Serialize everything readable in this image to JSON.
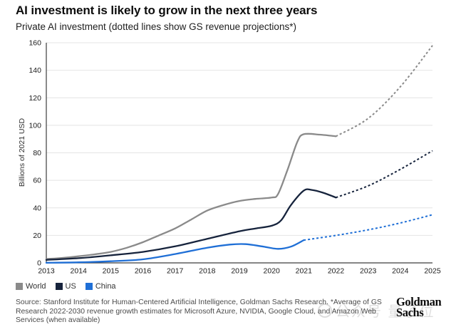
{
  "header": {
    "title": "AI investment is likely to grow in the next three years",
    "subtitle": "Private AI investment (dotted lines show GS revenue projections*)"
  },
  "chart_data": {
    "type": "line",
    "title": "AI investment is likely to grow in the next three years",
    "subtitle": "Private AI investment (dotted lines show GS revenue projections*)",
    "ylabel": "Billions of 2021 USD",
    "xlabel": "",
    "ylim": [
      0,
      160
    ],
    "xlim": [
      2013,
      2025
    ],
    "y_ticks": [
      0,
      20,
      40,
      60,
      80,
      100,
      120,
      140,
      160
    ],
    "x_ticks": [
      2013,
      2014,
      2015,
      2016,
      2017,
      2018,
      2019,
      2020,
      2021,
      2022,
      2023,
      2024,
      2025
    ],
    "grid": true,
    "legend_position": "bottom-left",
    "projection_note": "dotted line segments are GS revenue projections",
    "series": [
      {
        "name": "World",
        "color": "#8a8a8a",
        "annual": {
          "2013": 2.8,
          "2014": 4.8,
          "2015": 8,
          "2016": 15,
          "2017": 25,
          "2018": 38,
          "2019": 45,
          "2020": 47.5,
          "2021": 93.5,
          "2022": 92,
          "2023": 105,
          "2024": 128,
          "2025": 158
        },
        "solid_points": [
          [
            2013,
            2.8
          ],
          [
            2013.5,
            3.6
          ],
          [
            2014,
            4.8
          ],
          [
            2014.5,
            6.2
          ],
          [
            2015,
            8
          ],
          [
            2015.5,
            11
          ],
          [
            2016,
            15
          ],
          [
            2016.5,
            20
          ],
          [
            2017,
            25
          ],
          [
            2017.5,
            31.5
          ],
          [
            2018,
            38
          ],
          [
            2018.5,
            42
          ],
          [
            2019,
            45
          ],
          [
            2019.5,
            46.5
          ],
          [
            2020,
            47.5
          ],
          [
            2020.2,
            50
          ],
          [
            2020.5,
            68
          ],
          [
            2020.8,
            88
          ],
          [
            2021,
            93.5
          ],
          [
            2021.5,
            93.2
          ],
          [
            2022,
            92
          ]
        ],
        "dotted_points": [
          [
            2022,
            92
          ],
          [
            2023,
            105
          ],
          [
            2024,
            128
          ],
          [
            2025,
            158
          ]
        ]
      },
      {
        "name": "US",
        "color": "#16233c",
        "annual": {
          "2013": 2.2,
          "2014": 3.4,
          "2015": 5.5,
          "2016": 8,
          "2017": 12,
          "2018": 17.5,
          "2019": 23,
          "2020": 27,
          "2021": 53,
          "2022": 47.5,
          "2023": 56,
          "2024": 68,
          "2025": 81.5
        },
        "solid_points": [
          [
            2013,
            2.2
          ],
          [
            2014,
            3.4
          ],
          [
            2015,
            5.5
          ],
          [
            2016,
            8
          ],
          [
            2017,
            12
          ],
          [
            2018,
            17.5
          ],
          [
            2019,
            23
          ],
          [
            2019.5,
            25
          ],
          [
            2020,
            27
          ],
          [
            2020.3,
            31
          ],
          [
            2020.6,
            42
          ],
          [
            2021,
            52.5
          ],
          [
            2021.25,
            53
          ],
          [
            2021.6,
            51
          ],
          [
            2022,
            47.5
          ]
        ],
        "dotted_points": [
          [
            2022,
            47.5
          ],
          [
            2023,
            56
          ],
          [
            2024,
            68
          ],
          [
            2025,
            81.5
          ]
        ]
      },
      {
        "name": "China",
        "color": "#1f6fd6",
        "annual": {
          "2013": 0.1,
          "2014": 0.4,
          "2015": 1.2,
          "2016": 2.6,
          "2017": 6.4,
          "2018": 11,
          "2019": 13.5,
          "2020": 10.3,
          "2021": 16.5,
          "2022": 20,
          "2023": 24,
          "2024": 29,
          "2025": 35
        },
        "solid_points": [
          [
            2013,
            0.1
          ],
          [
            2014,
            0.4
          ],
          [
            2015,
            1.2
          ],
          [
            2016,
            2.6
          ],
          [
            2017,
            6.4
          ],
          [
            2018,
            11
          ],
          [
            2018.7,
            13.3
          ],
          [
            2019.2,
            13.6
          ],
          [
            2019.7,
            12
          ],
          [
            2020.2,
            10.2
          ],
          [
            2020.6,
            11.8
          ],
          [
            2021,
            16.5
          ]
        ],
        "dotted_points": [
          [
            2021,
            16.5
          ],
          [
            2022,
            20
          ],
          [
            2023,
            24
          ],
          [
            2024,
            29
          ],
          [
            2025,
            35
          ]
        ]
      }
    ]
  },
  "footer": {
    "source_lines": [
      "Source: Stanford Institute for Human-Centered Artificial Intelligence, Goldman Sachs Research. *Average of GS",
      "Research 2022-2030 revenue growth estimates for Microsoft Azure, NVIDIA, Google Cloud, and Amazon Web",
      "Services (when available)"
    ],
    "logo_line1": "Goldman",
    "logo_line2": "Sachs",
    "watermark": "公众号 量子位"
  }
}
